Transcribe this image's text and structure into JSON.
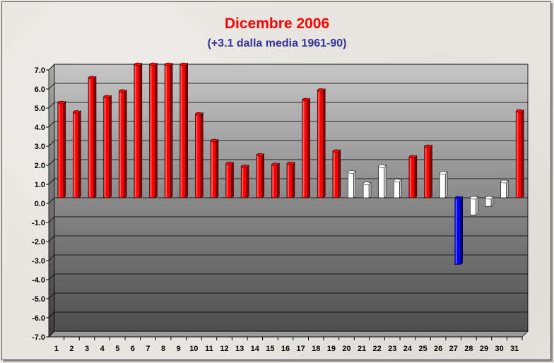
{
  "chart_data": {
    "type": "bar",
    "title": "Dicembre 2006",
    "subtitle": "(+3.1 dalla media 1961-90)",
    "xlabel": "",
    "ylabel": "",
    "ylim": [
      -7,
      7
    ],
    "y_ticks": [
      "7.0",
      "6.0",
      "5.0",
      "4.0",
      "3.0",
      "2.0",
      "1.0",
      "0.0",
      "-1.0",
      "-2.0",
      "-3.0",
      "-4.0",
      "-5.0",
      "-6.0",
      "-7.0"
    ],
    "categories": [
      "1",
      "2",
      "3",
      "4",
      "5",
      "6",
      "7",
      "8",
      "9",
      "10",
      "11",
      "12",
      "13",
      "14",
      "15",
      "16",
      "17",
      "18",
      "19",
      "20",
      "21",
      "22",
      "23",
      "24",
      "25",
      "26",
      "27",
      "28",
      "29",
      "30",
      "31"
    ],
    "values": [
      5.0,
      4.5,
      6.3,
      5.3,
      5.6,
      7.0,
      7.0,
      7.0,
      7.0,
      4.4,
      3.0,
      1.8,
      1.65,
      2.25,
      1.75,
      1.8,
      5.15,
      5.65,
      2.45,
      1.35,
      0.75,
      1.65,
      0.9,
      2.15,
      2.7,
      1.3,
      -3.5,
      -0.9,
      -0.45,
      0.85,
      4.55
    ],
    "bar_colors": [
      "red",
      "red",
      "red",
      "red",
      "red",
      "red",
      "red",
      "red",
      "red",
      "red",
      "red",
      "red",
      "red",
      "red",
      "red",
      "red",
      "red",
      "red",
      "red",
      "white",
      "white",
      "white",
      "white",
      "red",
      "red",
      "white",
      "blue",
      "white",
      "white",
      "white",
      "red"
    ],
    "grid": true,
    "legend": "none",
    "colors": {
      "red": "#ff0000",
      "white": "#ffffff",
      "blue": "#0000ff",
      "title": "#ff0000",
      "subtitle": "#333399"
    }
  }
}
